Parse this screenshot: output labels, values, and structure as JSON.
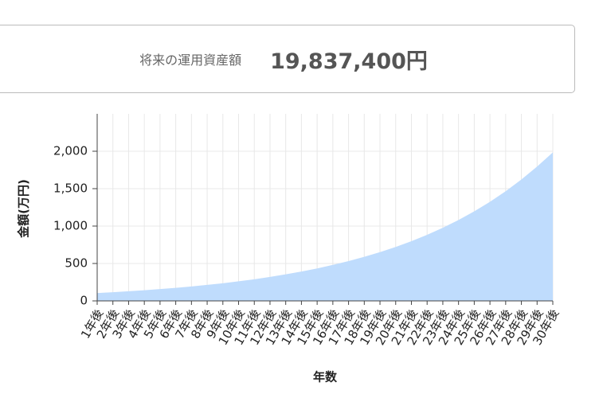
{
  "result": {
    "label": "将来の運用資産額",
    "value": "19,837,400円"
  },
  "chart_data": {
    "type": "area",
    "x_label": "年数",
    "y_label": "金額(万円)",
    "categories": [
      "1年後",
      "2年後",
      "3年後",
      "4年後",
      "5年後",
      "6年後",
      "7年後",
      "8年後",
      "9年後",
      "10年後",
      "11年後",
      "12年後",
      "13年後",
      "14年後",
      "15年後",
      "16年後",
      "17年後",
      "18年後",
      "19年後",
      "20年後",
      "21年後",
      "22年後",
      "23年後",
      "24年後",
      "25年後",
      "26年後",
      "27年後",
      "28年後",
      "29年後",
      "30年後"
    ],
    "values": [
      105,
      116,
      129,
      142,
      158,
      174,
      193,
      214,
      236,
      262,
      289,
      320,
      355,
      392,
      434,
      481,
      532,
      589,
      651,
      721,
      798,
      883,
      977,
      1081,
      1197,
      1324,
      1466,
      1622,
      1795,
      1984
    ],
    "color": "#bfdcfd",
    "ylim": [
      0,
      2500
    ],
    "yticks": [
      0,
      500,
      {
        "value": 1000,
        "label": "1,000"
      },
      {
        "value": 1500,
        "label": "1,500"
      },
      {
        "value": 2000,
        "label": "2,000"
      }
    ],
    "grid": true
  }
}
